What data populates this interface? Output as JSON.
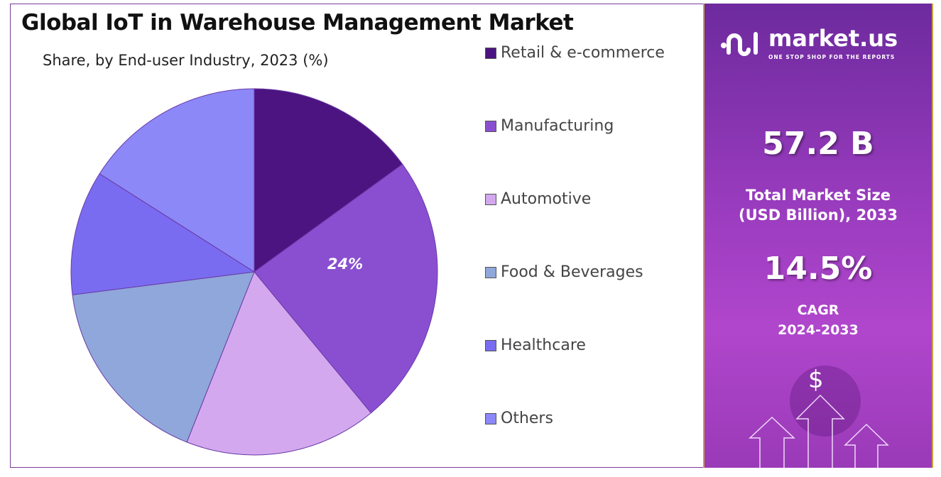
{
  "chart_data": {
    "type": "pie",
    "title": "Global IoT in Warehouse Management Market",
    "subtitle": "Share, by End-user Industry, 2023 (%)",
    "categories": [
      "Retail & e-commerce",
      "Manufacturing",
      "Automotive",
      "Food & Beverages",
      "Healthcare",
      "Others"
    ],
    "values": [
      15,
      24,
      17,
      17,
      11,
      16
    ],
    "colors": [
      "#4b1480",
      "#8a4fd0",
      "#d3a8ee",
      "#8fa7da",
      "#7a6cf0",
      "#8c88f8"
    ],
    "data_labels": {
      "Manufacturing": "24%"
    },
    "legend_position": "right"
  },
  "panel": {
    "brand": "market.us",
    "tagline": "ONE STOP SHOP FOR THE REPORTS",
    "market_size": "57.2 B",
    "market_size_label_1": "Total Market Size",
    "market_size_label_2": "(USD Billion), 2033",
    "cagr": "14.5%",
    "cagr_label": "CAGR",
    "cagr_period": "2024-2033",
    "dollar": "$"
  }
}
